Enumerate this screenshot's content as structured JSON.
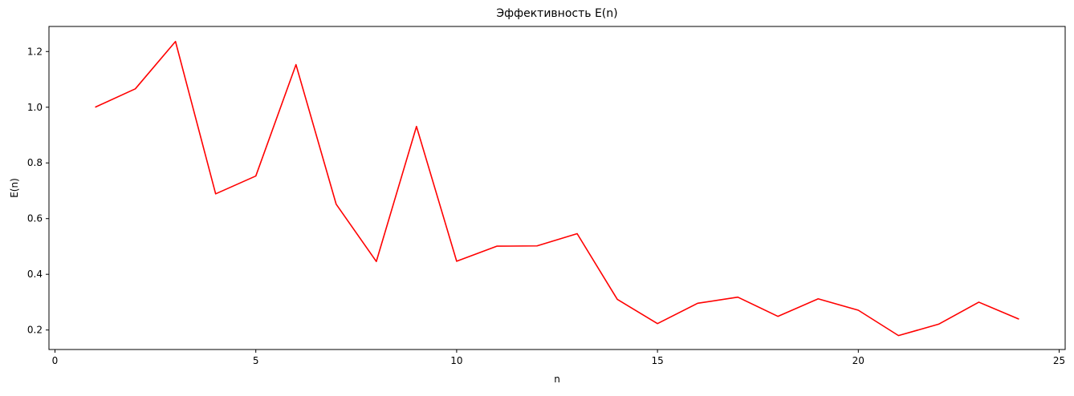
{
  "chart_data": {
    "type": "line",
    "title": "Эффективность E(n)",
    "xlabel": "n",
    "ylabel": "E(n)",
    "xlim": [
      -0.15,
      25.15
    ],
    "ylim": [
      0.13,
      1.29
    ],
    "xticks": [
      0,
      5,
      10,
      15,
      20,
      25
    ],
    "yticks": [
      0.2,
      0.4,
      0.6,
      0.8,
      1.0,
      1.2
    ],
    "xtick_labels": [
      "0",
      "5",
      "10",
      "15",
      "20",
      "25"
    ],
    "ytick_labels": [
      "0.2",
      "0.4",
      "0.6",
      "0.8",
      "1.0",
      "1.2"
    ],
    "grid": false,
    "series": [
      {
        "color": "#ff0000",
        "x": [
          1,
          2,
          3,
          4,
          5,
          6,
          7,
          8,
          9,
          10,
          11,
          12,
          13,
          14,
          15,
          16,
          17,
          18,
          19,
          20,
          21,
          22,
          23,
          24
        ],
        "values": [
          1.0,
          1.066,
          1.236,
          0.689,
          0.753,
          1.153,
          0.652,
          0.446,
          0.931,
          0.447,
          0.501,
          0.502,
          0.546,
          0.31,
          0.223,
          0.296,
          0.318,
          0.249,
          0.312,
          0.271,
          0.18,
          0.221,
          0.3,
          0.239
        ]
      }
    ]
  }
}
